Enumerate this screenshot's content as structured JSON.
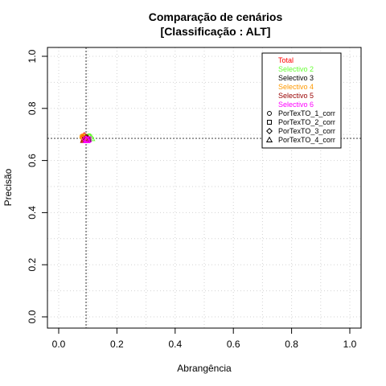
{
  "chart_data": {
    "type": "scatter",
    "title": "Comparação de cenários",
    "subtitle": "[Classificação : ALT]",
    "xlabel": "Abrangência",
    "ylabel": "Precisão",
    "xlim": [
      0,
      1
    ],
    "ylim": [
      0,
      1
    ],
    "xticks": [
      "0.0",
      "0.2",
      "0.4",
      "0.6",
      "0.8",
      "1.0"
    ],
    "yticks": [
      "0.0",
      "0.2",
      "0.4",
      "0.6",
      "0.8",
      "1.0"
    ],
    "grid": true,
    "legend_position": "top-right",
    "reference_lines": {
      "x": 0.094,
      "y": 0.685
    },
    "color_legend": [
      {
        "name": "Total",
        "color": "#ff0000"
      },
      {
        "name": "Selectivo 2",
        "color": "#66ff33"
      },
      {
        "name": "Selectivo 3",
        "color": "#000000"
      },
      {
        "name": "Selectivo 4",
        "color": "#ff9900"
      },
      {
        "name": "Selectivo 5",
        "color": "#990000"
      },
      {
        "name": "Selectivo 6",
        "color": "#ff00ff"
      }
    ],
    "shape_legend": [
      {
        "name": "PorTexTO_1_corr",
        "shape": "circle"
      },
      {
        "name": "PorTexTO_2_corr",
        "shape": "square"
      },
      {
        "name": "PorTexTO_3_corr",
        "shape": "diamond"
      },
      {
        "name": "PorTexTO_4_corr",
        "shape": "triangle"
      }
    ],
    "points": [
      {
        "series": "Total",
        "shape": "circle",
        "x": 0.085,
        "y": 0.69
      },
      {
        "series": "Total",
        "shape": "square",
        "x": 0.09,
        "y": 0.686
      },
      {
        "series": "Total",
        "shape": "diamond",
        "x": 0.088,
        "y": 0.694
      },
      {
        "series": "Total",
        "shape": "triangle",
        "x": 0.092,
        "y": 0.689
      },
      {
        "series": "Selectivo 2",
        "shape": "circle",
        "x": 0.105,
        "y": 0.693
      },
      {
        "series": "Selectivo 2",
        "shape": "square",
        "x": 0.1,
        "y": 0.69
      },
      {
        "series": "Selectivo 2",
        "shape": "diamond",
        "x": 0.108,
        "y": 0.688
      },
      {
        "series": "Selectivo 2",
        "shape": "triangle",
        "x": 0.112,
        "y": 0.686
      },
      {
        "series": "Selectivo 3",
        "shape": "circle",
        "x": 0.095,
        "y": 0.683
      },
      {
        "series": "Selectivo 3",
        "shape": "square",
        "x": 0.098,
        "y": 0.681
      },
      {
        "series": "Selectivo 3",
        "shape": "diamond",
        "x": 0.093,
        "y": 0.685
      },
      {
        "series": "Selectivo 3",
        "shape": "triangle",
        "x": 0.1,
        "y": 0.684
      },
      {
        "series": "Selectivo 4",
        "shape": "circle",
        "x": 0.082,
        "y": 0.692
      },
      {
        "series": "Selectivo 4",
        "shape": "square",
        "x": 0.086,
        "y": 0.684
      },
      {
        "series": "Selectivo 4",
        "shape": "diamond",
        "x": 0.084,
        "y": 0.688
      },
      {
        "series": "Selectivo 4",
        "shape": "triangle",
        "x": 0.088,
        "y": 0.682
      },
      {
        "series": "Selectivo 5",
        "shape": "circle",
        "x": 0.09,
        "y": 0.68
      },
      {
        "series": "Selectivo 5",
        "shape": "square",
        "x": 0.094,
        "y": 0.679
      },
      {
        "series": "Selectivo 5",
        "shape": "diamond",
        "x": 0.096,
        "y": 0.687
      },
      {
        "series": "Selectivo 5",
        "shape": "triangle",
        "x": 0.087,
        "y": 0.679
      },
      {
        "series": "Selectivo 6",
        "shape": "circle",
        "x": 0.098,
        "y": 0.679
      },
      {
        "series": "Selectivo 6",
        "shape": "square",
        "x": 0.102,
        "y": 0.681
      },
      {
        "series": "Selectivo 6",
        "shape": "diamond",
        "x": 0.092,
        "y": 0.681
      },
      {
        "series": "Selectivo 6",
        "shape": "triangle",
        "x": 0.096,
        "y": 0.678
      }
    ]
  }
}
